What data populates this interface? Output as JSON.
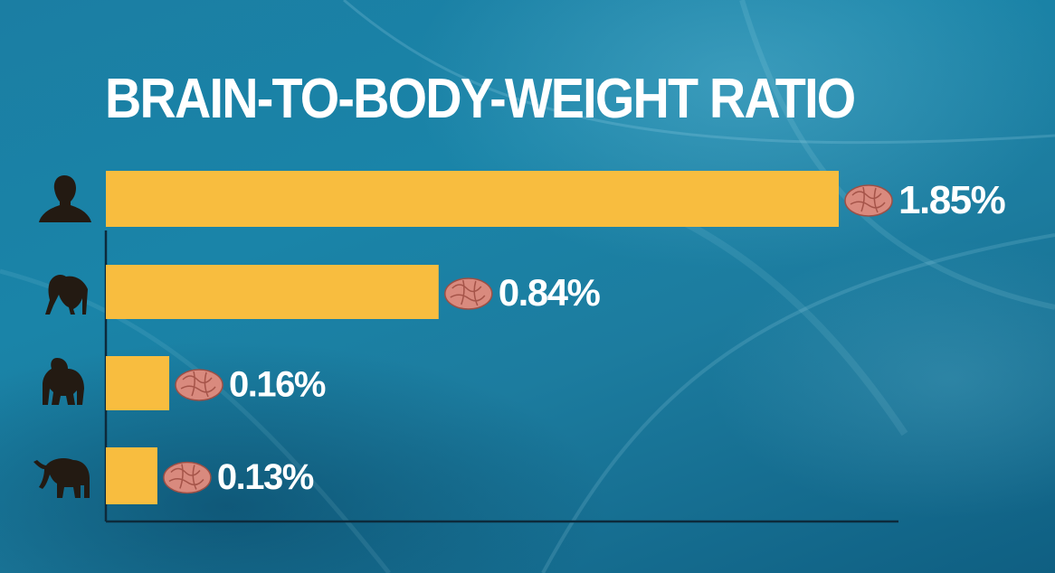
{
  "chart_data": {
    "type": "bar",
    "orientation": "horizontal",
    "title": "BRAIN-TO-BODY-WEIGHT RATIO",
    "categories": [
      "human",
      "chimpanzee",
      "gorilla",
      "elephant"
    ],
    "values": [
      1.85,
      0.84,
      0.16,
      0.13
    ],
    "value_labels": [
      "1.85%",
      "0.84%",
      "0.16%",
      "0.13%"
    ],
    "xlim": [
      0,
      1.85
    ],
    "grid": false,
    "legend": "none"
  },
  "colors": {
    "bar": "#f8bd3f",
    "axis": "#0d2a3b",
    "label": "#ffffff",
    "brain": "#d98a7e",
    "silhouette": "#231a12"
  },
  "icons": [
    "human-silhouette-icon",
    "chimpanzee-silhouette-icon",
    "gorilla-silhouette-icon",
    "elephant-silhouette-icon",
    "brain-icon"
  ]
}
